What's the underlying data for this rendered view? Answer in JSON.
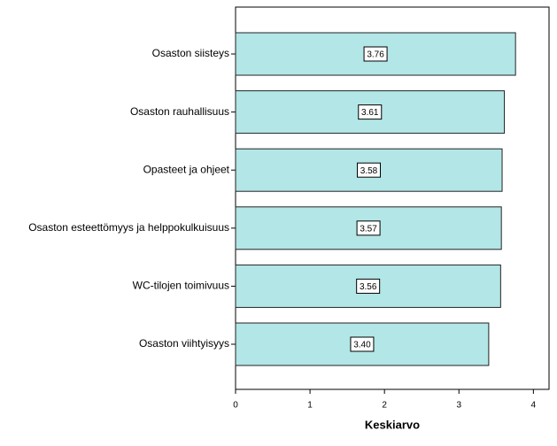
{
  "chart_data": {
    "type": "barh",
    "categories": [
      "Osaston siisteys",
      "Osaston rauhallisuus",
      "Opasteet ja ohjeet",
      "Osaston esteettömyys ja helppokulkuisuus",
      "WC-tilojen toimivuus",
      "Osaston viihtyisyys"
    ],
    "values": [
      3.76,
      3.61,
      3.58,
      3.57,
      3.56,
      3.4
    ],
    "value_labels": [
      "3.76",
      "3.61",
      "3.58",
      "3.57",
      "3.56",
      "3.40"
    ],
    "color": "#b3e6e6",
    "xlabel": "Keskiarvo",
    "xlim": [
      0,
      4.21
    ],
    "xticks": [
      0,
      1,
      2,
      3,
      4
    ]
  }
}
